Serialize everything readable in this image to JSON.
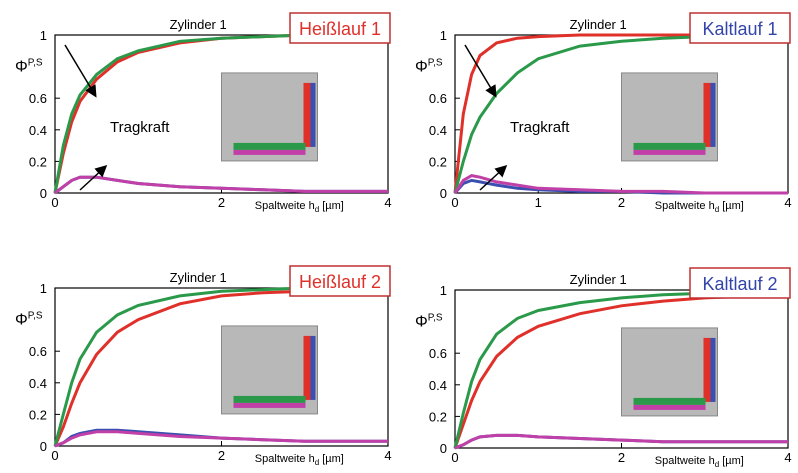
{
  "chart_data": [
    {
      "type": "line",
      "title": "Zylinder 1",
      "label": "Heißlauf 1",
      "label_color": "#e0302a",
      "annotation": "Tragkraft",
      "ylabel": "Φ",
      "ylabel_superscript": "P,S",
      "xlabel": "Spaltweite h",
      "xlabel_subscript": "d",
      "xlabel_unit": "[µm]",
      "x": [
        0,
        0.1,
        0.2,
        0.3,
        0.5,
        0.75,
        1,
        1.5,
        2,
        2.5,
        3,
        3.5,
        4
      ],
      "series": [
        {
          "color": "#e0302a",
          "values": [
            0,
            0.25,
            0.45,
            0.58,
            0.72,
            0.83,
            0.89,
            0.95,
            0.98,
            0.99,
            1,
            1,
            1
          ]
        },
        {
          "color": "#2a9a4a",
          "values": [
            0,
            0.3,
            0.5,
            0.62,
            0.75,
            0.85,
            0.9,
            0.96,
            0.98,
            0.99,
            1,
            1,
            1
          ]
        },
        {
          "color": "#3a4fb0",
          "values": [
            0,
            0.04,
            0.08,
            0.1,
            0.1,
            0.08,
            0.06,
            0.04,
            0.03,
            0.02,
            0.01,
            0.01,
            0.01
          ]
        },
        {
          "color": "#c040a8",
          "values": [
            0,
            0.04,
            0.08,
            0.1,
            0.1,
            0.08,
            0.06,
            0.04,
            0.03,
            0.02,
            0.01,
            0.01,
            0.01
          ]
        }
      ],
      "xlim": [
        0,
        4
      ],
      "ylim": [
        0,
        1
      ],
      "xticks": [
        0,
        2,
        4
      ],
      "yticks": [
        0,
        0.2,
        0.4,
        0.6,
        1
      ]
    },
    {
      "type": "line",
      "title": "Zylinder 1",
      "label": "Kaltlauf 1",
      "label_color": "#3344aa",
      "annotation": "Tragkraft",
      "ylabel": "Φ",
      "ylabel_superscript": "P,S",
      "xlabel": "Spaltweite h",
      "xlabel_subscript": "d",
      "xlabel_unit": "[µm]",
      "x": [
        0,
        0.1,
        0.2,
        0.3,
        0.5,
        0.75,
        1,
        1.5,
        2,
        2.5,
        3,
        3.5,
        4
      ],
      "series": [
        {
          "color": "#e0302a",
          "values": [
            0,
            0.5,
            0.75,
            0.87,
            0.95,
            0.98,
            0.99,
            1,
            1,
            1,
            1,
            1,
            1
          ]
        },
        {
          "color": "#2a9a4a",
          "values": [
            0,
            0.2,
            0.37,
            0.48,
            0.63,
            0.76,
            0.85,
            0.93,
            0.96,
            0.98,
            0.99,
            1,
            1
          ]
        },
        {
          "color": "#3a4fb0",
          "values": [
            0,
            0.06,
            0.08,
            0.07,
            0.05,
            0.03,
            0.02,
            0.01,
            0.01,
            0,
            0,
            0,
            0
          ]
        },
        {
          "color": "#c040a8",
          "values": [
            0,
            0.08,
            0.11,
            0.1,
            0.07,
            0.05,
            0.03,
            0.02,
            0.01,
            0.01,
            0,
            0,
            0
          ]
        }
      ],
      "xlim": [
        0,
        4
      ],
      "ylim": [
        0,
        1
      ],
      "xticks": [
        0,
        1,
        2,
        4
      ],
      "yticks": [
        0,
        0.2,
        0.4,
        0.6,
        1
      ]
    },
    {
      "type": "line",
      "title": "Zylinder 1",
      "label": "Heißlauf 2",
      "label_color": "#e0302a",
      "ylabel": "Φ",
      "ylabel_superscript": "P,S",
      "xlabel": "Spaltweite h",
      "xlabel_subscript": "d",
      "xlabel_unit": "[µm]",
      "x": [
        0,
        0.1,
        0.2,
        0.3,
        0.5,
        0.75,
        1,
        1.5,
        2,
        2.5,
        3,
        3.5,
        4
      ],
      "series": [
        {
          "color": "#e0302a",
          "values": [
            0,
            0.12,
            0.27,
            0.4,
            0.58,
            0.72,
            0.8,
            0.9,
            0.95,
            0.97,
            0.98,
            0.99,
            1
          ]
        },
        {
          "color": "#2a9a4a",
          "values": [
            0,
            0.2,
            0.4,
            0.55,
            0.72,
            0.83,
            0.89,
            0.95,
            0.98,
            0.99,
            1,
            1,
            1
          ]
        },
        {
          "color": "#3a4fb0",
          "values": [
            0,
            0.02,
            0.06,
            0.08,
            0.1,
            0.1,
            0.09,
            0.07,
            0.05,
            0.04,
            0.03,
            0.03,
            0.03
          ]
        },
        {
          "color": "#c040a8",
          "values": [
            0,
            0.02,
            0.05,
            0.07,
            0.09,
            0.09,
            0.08,
            0.06,
            0.05,
            0.04,
            0.03,
            0.03,
            0.03
          ]
        }
      ],
      "xlim": [
        0,
        4
      ],
      "ylim": [
        0,
        1
      ],
      "xticks": [
        0,
        2,
        4
      ],
      "yticks": [
        0,
        0.2,
        0.4,
        0.6,
        1
      ]
    },
    {
      "type": "line",
      "title": "Zylinder 1",
      "label": "Kaltlauf 2",
      "label_color": "#3344aa",
      "ylabel": "Φ",
      "ylabel_superscript": "P,S",
      "xlabel": "Spaltweite h",
      "xlabel_subscript": "d",
      "xlabel_unit": "[µm]",
      "x": [
        0,
        0.1,
        0.2,
        0.3,
        0.5,
        0.75,
        1,
        1.5,
        2,
        2.5,
        3,
        3.5,
        4
      ],
      "series": [
        {
          "color": "#e0302a",
          "values": [
            0,
            0.15,
            0.3,
            0.42,
            0.58,
            0.7,
            0.77,
            0.85,
            0.9,
            0.93,
            0.95,
            0.96,
            0.97
          ]
        },
        {
          "color": "#2a9a4a",
          "values": [
            0,
            0.22,
            0.42,
            0.56,
            0.72,
            0.82,
            0.87,
            0.92,
            0.95,
            0.97,
            0.98,
            0.99,
            1
          ]
        },
        {
          "color": "#3a4fb0",
          "values": [
            0,
            0.02,
            0.05,
            0.07,
            0.08,
            0.08,
            0.07,
            0.06,
            0.05,
            0.04,
            0.04,
            0.04,
            0.04
          ]
        },
        {
          "color": "#c040a8",
          "values": [
            0,
            0.02,
            0.05,
            0.07,
            0.08,
            0.08,
            0.07,
            0.06,
            0.05,
            0.04,
            0.04,
            0.04,
            0.04
          ]
        }
      ],
      "xlim": [
        0,
        4
      ],
      "ylim": [
        0,
        1
      ],
      "xticks": [
        0,
        2,
        4
      ],
      "yticks": [
        0,
        0.2,
        0.4,
        0.6,
        1
      ]
    }
  ]
}
